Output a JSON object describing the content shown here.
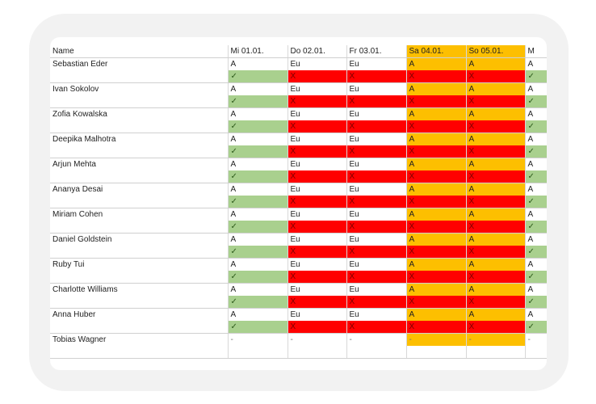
{
  "header": {
    "name_label": "Name",
    "days": [
      {
        "label": "Mi 01.01.",
        "weekend": false
      },
      {
        "label": "Do 02.01.",
        "weekend": false
      },
      {
        "label": "Fr 03.01.",
        "weekend": false
      },
      {
        "label": "Sa 04.01.",
        "weekend": true
      },
      {
        "label": "So 05.01.",
        "weekend": true
      },
      {
        "label": "M",
        "weekend": false
      }
    ]
  },
  "people": [
    {
      "name": "Sebastian Eder",
      "shifts": [
        "A",
        "Eu",
        "Eu",
        "A",
        "A",
        "A"
      ],
      "status": [
        "✓",
        "X",
        "X",
        "X",
        "X",
        "✓"
      ]
    },
    {
      "name": "Ivan Sokolov",
      "shifts": [
        "A",
        "Eu",
        "Eu",
        "A",
        "A",
        "A"
      ],
      "status": [
        "✓",
        "X",
        "X",
        "X",
        "X",
        "✓"
      ]
    },
    {
      "name": "Zofia Kowalska",
      "shifts": [
        "A",
        "Eu",
        "Eu",
        "A",
        "A",
        "A"
      ],
      "status": [
        "✓",
        "X",
        "X",
        "X",
        "X",
        "✓"
      ]
    },
    {
      "name": "Deepika Malhotra",
      "shifts": [
        "A",
        "Eu",
        "Eu",
        "A",
        "A",
        "A"
      ],
      "status": [
        "✓",
        "X",
        "X",
        "X",
        "X",
        "✓"
      ]
    },
    {
      "name": "Arjun Mehta",
      "shifts": [
        "A",
        "Eu",
        "Eu",
        "A",
        "A",
        "A"
      ],
      "status": [
        "✓",
        "X",
        "X",
        "X",
        "X",
        "✓"
      ]
    },
    {
      "name": "Ananya Desai",
      "shifts": [
        "A",
        "Eu",
        "Eu",
        "A",
        "A",
        "A"
      ],
      "status": [
        "✓",
        "X",
        "X",
        "X",
        "X",
        "✓"
      ]
    },
    {
      "name": "Miriam Cohen",
      "shifts": [
        "A",
        "Eu",
        "Eu",
        "A",
        "A",
        "A"
      ],
      "status": [
        "✓",
        "X",
        "X",
        "X",
        "X",
        "✓"
      ]
    },
    {
      "name": "Daniel Goldstein",
      "shifts": [
        "A",
        "Eu",
        "Eu",
        "A",
        "A",
        "A"
      ],
      "status": [
        "✓",
        "X",
        "X",
        "X",
        "X",
        "✓"
      ]
    },
    {
      "name": "Ruby Tui",
      "shifts": [
        "A",
        "Eu",
        "Eu",
        "A",
        "A",
        "A"
      ],
      "status": [
        "✓",
        "X",
        "X",
        "X",
        "X",
        "✓"
      ]
    },
    {
      "name": "Charlotte Williams",
      "shifts": [
        "A",
        "Eu",
        "Eu",
        "A",
        "A",
        "A"
      ],
      "status": [
        "✓",
        "X",
        "X",
        "X",
        "X",
        "✓"
      ]
    },
    {
      "name": "Anna Huber",
      "shifts": [
        "A",
        "Eu",
        "Eu",
        "A",
        "A",
        "A"
      ],
      "status": [
        "✓",
        "X",
        "X",
        "X",
        "X",
        "✓"
      ]
    },
    {
      "name": "Tobias Wagner",
      "shifts": [
        "-",
        "-",
        "-",
        "-",
        "-",
        "-"
      ],
      "status": null
    }
  ],
  "colors": {
    "ok": "#a9d08e",
    "conflict": "#ff0000",
    "weekend": "#fdbf00"
  }
}
